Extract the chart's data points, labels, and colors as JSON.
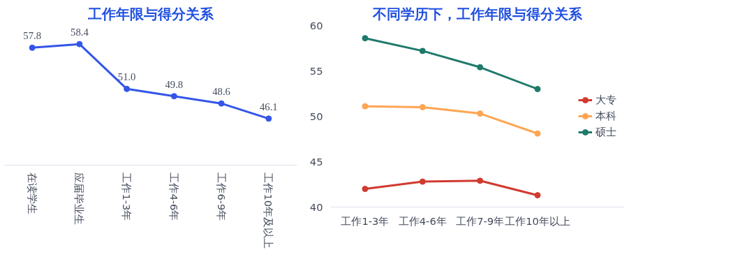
{
  "chart_data": [
    {
      "type": "line",
      "title": "工作年限与得分关系",
      "categories": [
        "在读学生",
        "应届毕业生",
        "工作1-3年",
        "工作4-6年",
        "工作6-9年",
        "工作10年及以上"
      ],
      "series": [
        {
          "color": "#3355e8",
          "values": [
            57.8,
            58.4,
            51.0,
            49.8,
            48.6,
            46.1
          ],
          "value_labels": [
            "57.8",
            "58.4",
            "51.0",
            "49.8",
            "48.6",
            "46.1"
          ]
        }
      ],
      "tick_labels": "x",
      "grid": false,
      "marker": "circle",
      "line_style": "solid"
    },
    {
      "type": "line",
      "title": "不同学历下，工作年限与得分关系",
      "categories": [
        "工作1-3年",
        "工作4-6年",
        "工作7-9年",
        "工作10年以上"
      ],
      "ylim": [
        40,
        60
      ],
      "yticks": [
        40,
        45,
        50,
        55,
        60
      ],
      "series": [
        {
          "name": "大专",
          "color": "#d13a2f",
          "values": [
            42.0,
            42.8,
            42.9,
            41.3
          ]
        },
        {
          "name": "本科",
          "color": "#ffa552",
          "values": [
            51.1,
            51.0,
            50.3,
            48.1
          ]
        },
        {
          "name": "硕士",
          "color": "#1e7a6b",
          "values": [
            58.6,
            57.2,
            55.4,
            53.0
          ]
        }
      ],
      "grid": false,
      "legend": "right",
      "marker": "circle",
      "line_style": "solid"
    }
  ]
}
